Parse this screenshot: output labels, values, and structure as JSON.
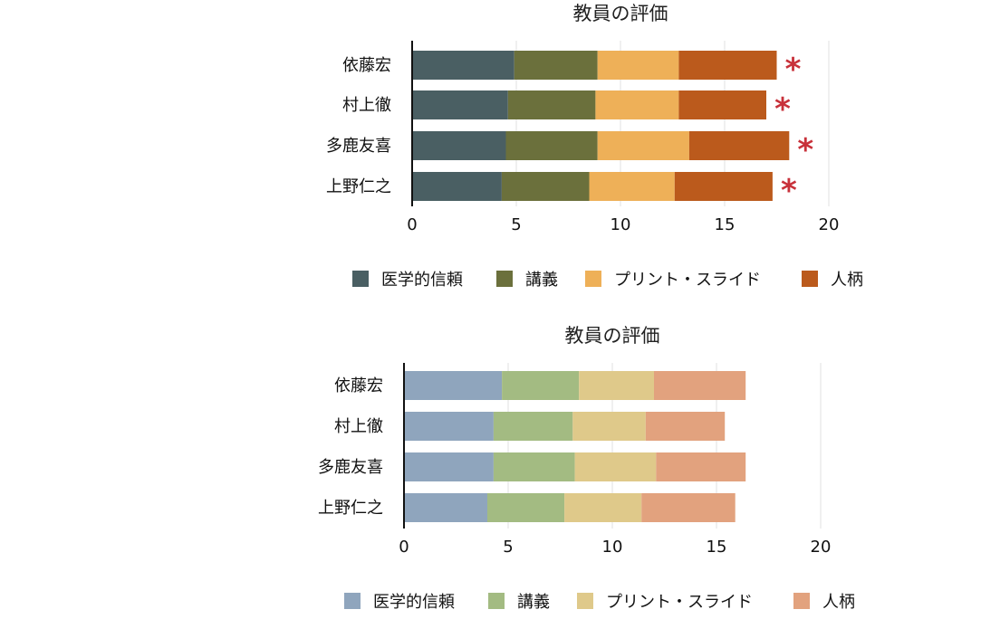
{
  "chart_data": [
    {
      "type": "bar",
      "orientation": "horizontal",
      "stacked": true,
      "title": "教員の評価",
      "categories": [
        "依藤宏",
        "村上徹",
        "多鹿友喜",
        "上野仁之"
      ],
      "series": [
        {
          "name": "医学的信頼",
          "values": [
            4.9,
            4.6,
            4.5,
            4.3
          ],
          "color": "#4a5f63"
        },
        {
          "name": "講義",
          "values": [
            4.0,
            4.2,
            4.4,
            4.2
          ],
          "color": "#6b703c"
        },
        {
          "name": "プリント・スライド",
          "values": [
            3.9,
            4.0,
            4.4,
            4.1
          ],
          "color": "#eeb058"
        },
        {
          "name": "人柄",
          "values": [
            4.7,
            4.2,
            4.8,
            4.7
          ],
          "color": "#bb5a1c"
        }
      ],
      "xlim": [
        0,
        20
      ],
      "xticks": [
        0,
        5,
        10,
        15,
        20
      ],
      "annotations": [
        "*",
        "*",
        "*",
        "*"
      ],
      "annotation_color": "#c8313a",
      "grid": true,
      "legend_position": "bottom"
    },
    {
      "type": "bar",
      "orientation": "horizontal",
      "stacked": true,
      "title": "教員の評価",
      "categories": [
        "依藤宏",
        "村上徹",
        "多鹿友喜",
        "上野仁之"
      ],
      "series": [
        {
          "name": "医学的信頼",
          "values": [
            4.7,
            4.3,
            4.3,
            4.0
          ],
          "color": "#8fa5bd"
        },
        {
          "name": "講義",
          "values": [
            3.7,
            3.8,
            3.9,
            3.7
          ],
          "color": "#a3bb82"
        },
        {
          "name": "プリント・スライド",
          "values": [
            3.6,
            3.5,
            3.9,
            3.7
          ],
          "color": "#dfc98a"
        },
        {
          "name": "人柄",
          "values": [
            4.4,
            3.8,
            4.3,
            4.5
          ],
          "color": "#e2a27e"
        }
      ],
      "xlim": [
        0,
        20
      ],
      "xticks": [
        0,
        5,
        10,
        15,
        20
      ],
      "grid": true,
      "legend_position": "bottom"
    }
  ]
}
